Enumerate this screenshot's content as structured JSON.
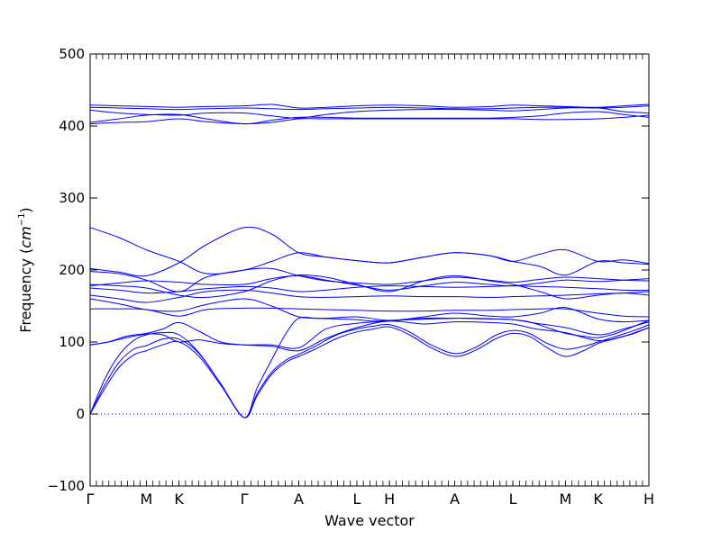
{
  "chart_data": {
    "type": "line",
    "title": "",
    "xlabel": "Wave vector",
    "ylabel_main": "Frequency (",
    "ylabel_math": "cm",
    "ylabel_exp": "−1",
    "ylabel_close": ")",
    "ylim": [
      -100,
      500
    ],
    "yticks": [
      -100,
      0,
      100,
      200,
      300,
      400,
      500
    ],
    "xlim": [
      0,
      15.4
    ],
    "xticks": [
      {
        "label": "Γ",
        "x": 0
      },
      {
        "label": "M",
        "x": 1.55
      },
      {
        "label": "K",
        "x": 2.45
      },
      {
        "label": "Γ",
        "x": 4.25
      },
      {
        "label": "A",
        "x": 5.75
      },
      {
        "label": "L",
        "x": 7.35
      },
      {
        "label": "H",
        "x": 8.25
      },
      {
        "label": "A",
        "x": 10.05
      },
      {
        "label": "L",
        "x": 11.65
      },
      {
        "label": "M",
        "x": 13.1
      },
      {
        "label": "K",
        "x": 14.0
      },
      {
        "label": "H",
        "x": 15.4
      }
    ],
    "zero_line": 0,
    "line_color": "#0000ff",
    "grid": false,
    "series": [
      {
        "x": [
          0,
          0.4,
          0.8,
          1.2,
          1.55,
          2.0,
          2.45,
          3.0,
          3.6,
          4.25,
          4.6,
          5.0,
          5.4,
          5.75,
          6.2,
          6.8,
          7.35,
          7.8,
          8.25,
          8.8,
          9.4,
          10.05,
          10.6,
          11.2,
          11.65,
          12.1,
          12.6,
          13.1,
          13.6,
          14.0,
          14.5,
          15.0,
          15.4
        ],
        "values": [
          0,
          35,
          65,
          82,
          88,
          96,
          100,
          80,
          40,
          -5,
          25,
          55,
          72,
          80,
          90,
          105,
          114,
          118,
          121,
          110,
          92,
          80,
          88,
          105,
          112,
          108,
          92,
          80,
          88,
          98,
          105,
          112,
          120
        ]
      },
      {
        "x": [
          0,
          0.4,
          0.8,
          1.2,
          1.55,
          2.0,
          2.45,
          3.0,
          3.6,
          4.25,
          4.6,
          5.0,
          5.4,
          5.75,
          6.2,
          6.8,
          7.35,
          7.8,
          8.25,
          8.8,
          9.4,
          10.05,
          10.6,
          11.2,
          11.65,
          12.1,
          12.6,
          13.1,
          13.6,
          14.0,
          14.5,
          15.0,
          15.4
        ],
        "values": [
          0,
          40,
          72,
          90,
          95,
          104,
          104,
          84,
          42,
          -5,
          28,
          58,
          75,
          83,
          94,
          110,
          118,
          122,
          124,
          114,
          96,
          84,
          92,
          110,
          116,
          112,
          98,
          90,
          94,
          100,
          108,
          116,
          124
        ]
      },
      {
        "x": [
          0,
          0.4,
          0.8,
          1.2,
          1.55,
          2.0,
          2.45,
          3.0,
          3.6,
          4.25,
          4.6,
          5.0,
          5.4,
          5.75,
          6.2,
          6.8,
          7.35,
          7.8,
          8.25,
          8.8,
          9.4,
          10.05,
          10.6,
          11.2,
          11.65,
          12.1,
          12.6,
          13.1,
          13.6,
          14.0,
          14.5,
          15.0,
          15.4
        ],
        "values": [
          0,
          48,
          82,
          102,
          110,
          113,
          110,
          85,
          42,
          -5,
          36,
          75,
          112,
          133,
          133,
          132,
          131,
          129,
          130,
          131,
          132,
          133,
          133,
          132,
          131,
          128,
          120,
          112,
          108,
          106,
          112,
          122,
          130
        ]
      },
      {
        "x": [
          0,
          0.5,
          1.0,
          1.55,
          2.0,
          2.45,
          3.0,
          3.6,
          4.25,
          5.0,
          5.75,
          6.5,
          7.35,
          8.25,
          9.2,
          10.05,
          11.0,
          11.65,
          12.3,
          13.1,
          14.0,
          14.7,
          15.4
        ],
        "values": [
          96,
          100,
          108,
          112,
          118,
          127,
          115,
          100,
          96,
          94,
          88,
          105,
          120,
          129,
          125,
          128,
          127,
          125,
          118,
          113,
          102,
          108,
          120
        ]
      },
      {
        "x": [
          0,
          0.5,
          1.0,
          1.55,
          2.0,
          2.45,
          3.0,
          3.6,
          4.25,
          5.0,
          5.75,
          6.5,
          7.35,
          8.25,
          9.2,
          10.05,
          11.0,
          11.65,
          12.3,
          13.1,
          14.0,
          14.7,
          15.4
        ],
        "values": [
          96,
          100,
          106,
          111,
          110,
          100,
          103,
          98,
          96,
          96,
          92,
          118,
          126,
          129,
          133,
          133,
          132,
          131,
          126,
          120,
          110,
          118,
          128
        ]
      },
      {
        "x": [
          0,
          0.8,
          1.55,
          2.45,
          3.2,
          4.25,
          5.0,
          5.75,
          6.5,
          7.35,
          8.25,
          9.2,
          10.05,
          11.0,
          11.65,
          12.4,
          13.1,
          14.0,
          14.7,
          15.4
        ],
        "values": [
          146,
          146,
          145,
          136,
          145,
          147,
          147,
          146,
          145,
          144,
          143,
          143,
          144,
          144,
          145,
          146,
          146,
          140,
          136,
          135
        ]
      },
      {
        "x": [
          0,
          0.8,
          1.55,
          2.45,
          3.2,
          4.25,
          5.0,
          5.75,
          6.5,
          7.35,
          8.25,
          9.2,
          10.05,
          11.0,
          11.65,
          12.4,
          13.1,
          14.0,
          14.7,
          15.4
        ],
        "values": [
          160,
          153,
          145,
          143,
          152,
          160,
          150,
          135,
          133,
          135,
          130,
          135,
          140,
          136,
          135,
          140,
          148,
          132,
          128,
          130
        ]
      },
      {
        "x": [
          0,
          0.8,
          1.55,
          2.45,
          3.2,
          4.25,
          5.0,
          5.75,
          6.5,
          7.35,
          8.25,
          9.2,
          10.05,
          11.0,
          11.65,
          12.4,
          13.1,
          14.0,
          14.7,
          15.4
        ],
        "values": [
          165,
          160,
          155,
          162,
          170,
          172,
          168,
          163,
          162,
          163,
          164,
          163,
          163,
          162,
          163,
          164,
          165,
          167,
          168,
          170
        ]
      },
      {
        "x": [
          0,
          0.8,
          1.55,
          2.45,
          3.2,
          4.25,
          5.0,
          5.75,
          6.5,
          7.35,
          8.25,
          9.2,
          10.05,
          11.0,
          11.65,
          12.4,
          13.1,
          14.0,
          14.7,
          15.4
        ],
        "values": [
          175,
          172,
          168,
          170,
          174,
          177,
          175,
          170,
          172,
          176,
          178,
          177,
          176,
          177,
          178,
          177,
          176,
          174,
          172,
          172
        ]
      },
      {
        "x": [
          0,
          0.8,
          1.55,
          2.45,
          3.2,
          4.25,
          5.0,
          5.75,
          6.5,
          7.35,
          8.25,
          9.2,
          10.05,
          11.0,
          11.65,
          12.4,
          13.1,
          14.0,
          14.7,
          15.4
        ],
        "values": [
          178,
          182,
          185,
          183,
          180,
          180,
          188,
          192,
          186,
          179,
          172,
          178,
          183,
          180,
          178,
          182,
          186,
          184,
          186,
          188
        ]
      },
      {
        "x": [
          0,
          0.8,
          1.55,
          2.45,
          3.2,
          4.25,
          5.0,
          5.75,
          6.5,
          7.35,
          8.25,
          9.2,
          10.05,
          11.0,
          11.65,
          12.4,
          13.1,
          14.0,
          14.7,
          15.4
        ],
        "values": [
          180,
          178,
          175,
          165,
          162,
          170,
          185,
          193,
          190,
          180,
          170,
          185,
          192,
          185,
          180,
          170,
          160,
          165,
          168,
          165
        ]
      },
      {
        "x": [
          0,
          0.8,
          1.55,
          2.45,
          3.2,
          4.25,
          5.0,
          5.75,
          6.5,
          7.35,
          8.25,
          9.2,
          10.05,
          11.0,
          11.65,
          12.4,
          13.1,
          14.0,
          14.7,
          15.4
        ],
        "values": [
          198,
          195,
          186,
          170,
          190,
          200,
          202,
          192,
          185,
          182,
          180,
          185,
          190,
          186,
          183,
          187,
          190,
          188,
          186,
          185
        ]
      },
      {
        "x": [
          0,
          0.8,
          1.55,
          2.45,
          3.2,
          4.25,
          5.0,
          5.75,
          6.5,
          7.35,
          8.25,
          9.2,
          10.05,
          11.0,
          11.65,
          12.4,
          13.1,
          14.0,
          14.7,
          15.4
        ],
        "values": [
          202,
          197,
          192,
          210,
          235,
          259,
          250,
          224,
          218,
          213,
          210,
          218,
          224,
          220,
          212,
          222,
          228,
          212,
          214,
          209
        ]
      },
      {
        "x": [
          0,
          0.8,
          1.55,
          2.45,
          3.2,
          4.25,
          5.0,
          5.75,
          6.5,
          7.35,
          8.25,
          9.2,
          10.05,
          11.0,
          11.65,
          12.4,
          13.1,
          14.0,
          14.7,
          15.4
        ],
        "values": [
          259,
          245,
          228,
          212,
          195,
          200,
          212,
          224,
          218,
          213,
          210,
          218,
          224,
          220,
          212,
          205,
          193,
          212,
          210,
          208
        ]
      },
      {
        "x": [
          0,
          0.8,
          1.55,
          2.45,
          3.2,
          4.25,
          5.0,
          5.75,
          6.5,
          7.35,
          8.25,
          9.2,
          10.05,
          11.0,
          11.65,
          12.4,
          13.1,
          14.0,
          14.7,
          15.4
        ],
        "values": [
          403,
          405,
          406,
          410,
          406,
          403,
          405,
          410,
          410,
          410,
          410,
          410,
          410,
          410,
          410,
          409,
          409,
          410,
          412,
          415
        ]
      },
      {
        "x": [
          0,
          0.8,
          1.55,
          2.45,
          3.2,
          4.25,
          5.0,
          5.75,
          6.5,
          7.35,
          8.25,
          9.2,
          10.05,
          11.0,
          11.65,
          12.4,
          13.1,
          14.0,
          14.7,
          15.4
        ],
        "values": [
          405,
          410,
          415,
          416,
          410,
          403,
          408,
          412,
          412,
          411,
          411,
          411,
          411,
          411,
          412,
          414,
          418,
          420,
          416,
          412
        ]
      },
      {
        "x": [
          0,
          0.8,
          1.55,
          2.45,
          3.2,
          4.25,
          5.0,
          5.75,
          6.5,
          7.35,
          8.25,
          9.2,
          10.05,
          11.0,
          11.65,
          12.4,
          13.1,
          14.0,
          14.7,
          15.4
        ],
        "values": [
          422,
          418,
          416,
          415,
          418,
          418,
          414,
          411,
          416,
          420,
          422,
          423,
          423,
          422,
          421,
          423,
          425,
          425,
          420,
          418
        ]
      },
      {
        "x": [
          0,
          0.8,
          1.55,
          2.45,
          3.2,
          4.25,
          5.0,
          5.75,
          6.5,
          7.35,
          8.25,
          9.2,
          10.05,
          11.0,
          11.65,
          12.4,
          13.1,
          14.0,
          14.7,
          15.4
        ],
        "values": [
          426,
          425,
          424,
          423,
          424,
          425,
          424,
          423,
          424,
          425,
          426,
          425,
          424,
          424,
          425,
          426,
          426,
          425,
          426,
          428
        ]
      },
      {
        "x": [
          0,
          0.8,
          1.55,
          2.45,
          3.2,
          4.25,
          5.0,
          5.75,
          6.5,
          7.35,
          8.25,
          9.2,
          10.05,
          11.0,
          11.65,
          12.4,
          13.1,
          14.0,
          14.7,
          15.4
        ],
        "values": [
          429,
          428,
          427,
          426,
          427,
          428,
          430,
          425,
          426,
          428,
          429,
          428,
          426,
          427,
          429,
          428,
          427,
          426,
          428,
          430
        ]
      }
    ]
  }
}
